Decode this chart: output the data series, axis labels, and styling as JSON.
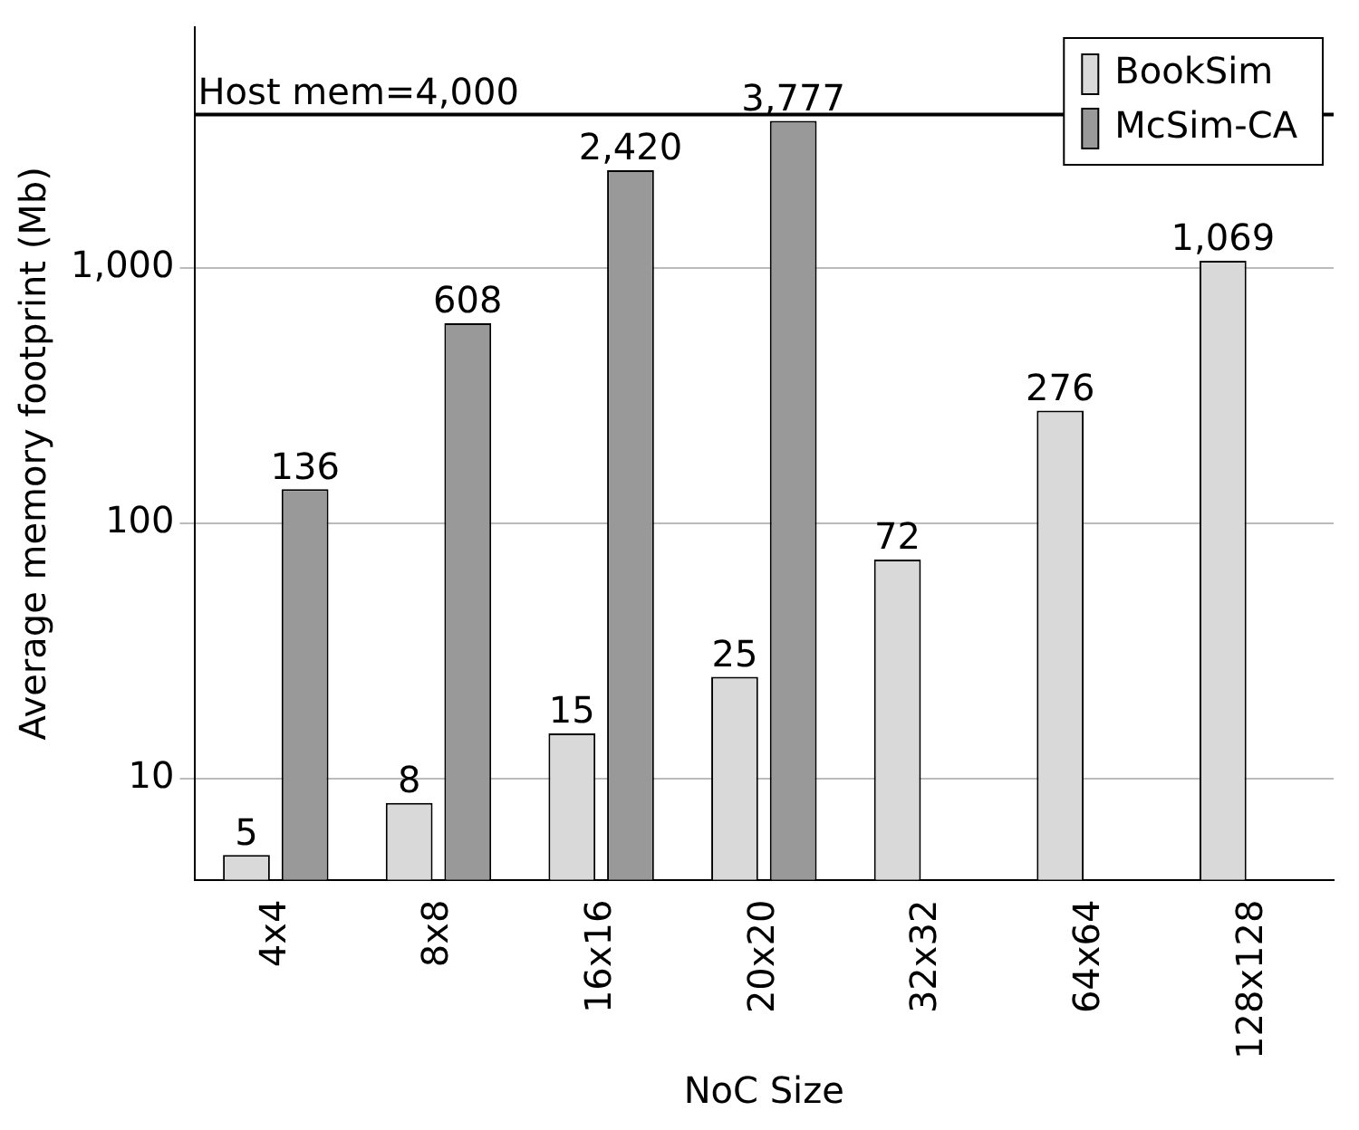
{
  "chart_data": {
    "type": "bar",
    "xlabel": "NoC Size",
    "ylabel": "Average memory footprint (Mb)",
    "categories": [
      "4x4",
      "8x8",
      "16x16",
      "20x20",
      "32x32",
      "64x64",
      "128x128"
    ],
    "series": [
      {
        "name": "BookSim",
        "color": "#d9d9d9",
        "values": [
          5,
          8,
          15,
          25,
          72,
          276,
          1069
        ],
        "value_labels": [
          "5",
          "8",
          "15",
          "25",
          "72",
          "276",
          "1,069"
        ]
      },
      {
        "name": "McSim-CA",
        "color": "#999999",
        "values": [
          136,
          608,
          2420,
          3777,
          null,
          null,
          null
        ],
        "value_labels": [
          "136",
          "608",
          "2,420",
          "3,777",
          null,
          null,
          null
        ]
      }
    ],
    "log": "y",
    "ylim": [
      4,
      8800
    ],
    "yticks": [
      {
        "value": 10,
        "label": "10"
      },
      {
        "value": 100,
        "label": "100"
      },
      {
        "value": 1000,
        "label": "1,000"
      }
    ],
    "grid": "y",
    "legend": "top right",
    "ref_lines": [
      {
        "axis": "y",
        "value": 4000,
        "label": "Host mem=4,000",
        "color": "#000000"
      }
    ]
  }
}
